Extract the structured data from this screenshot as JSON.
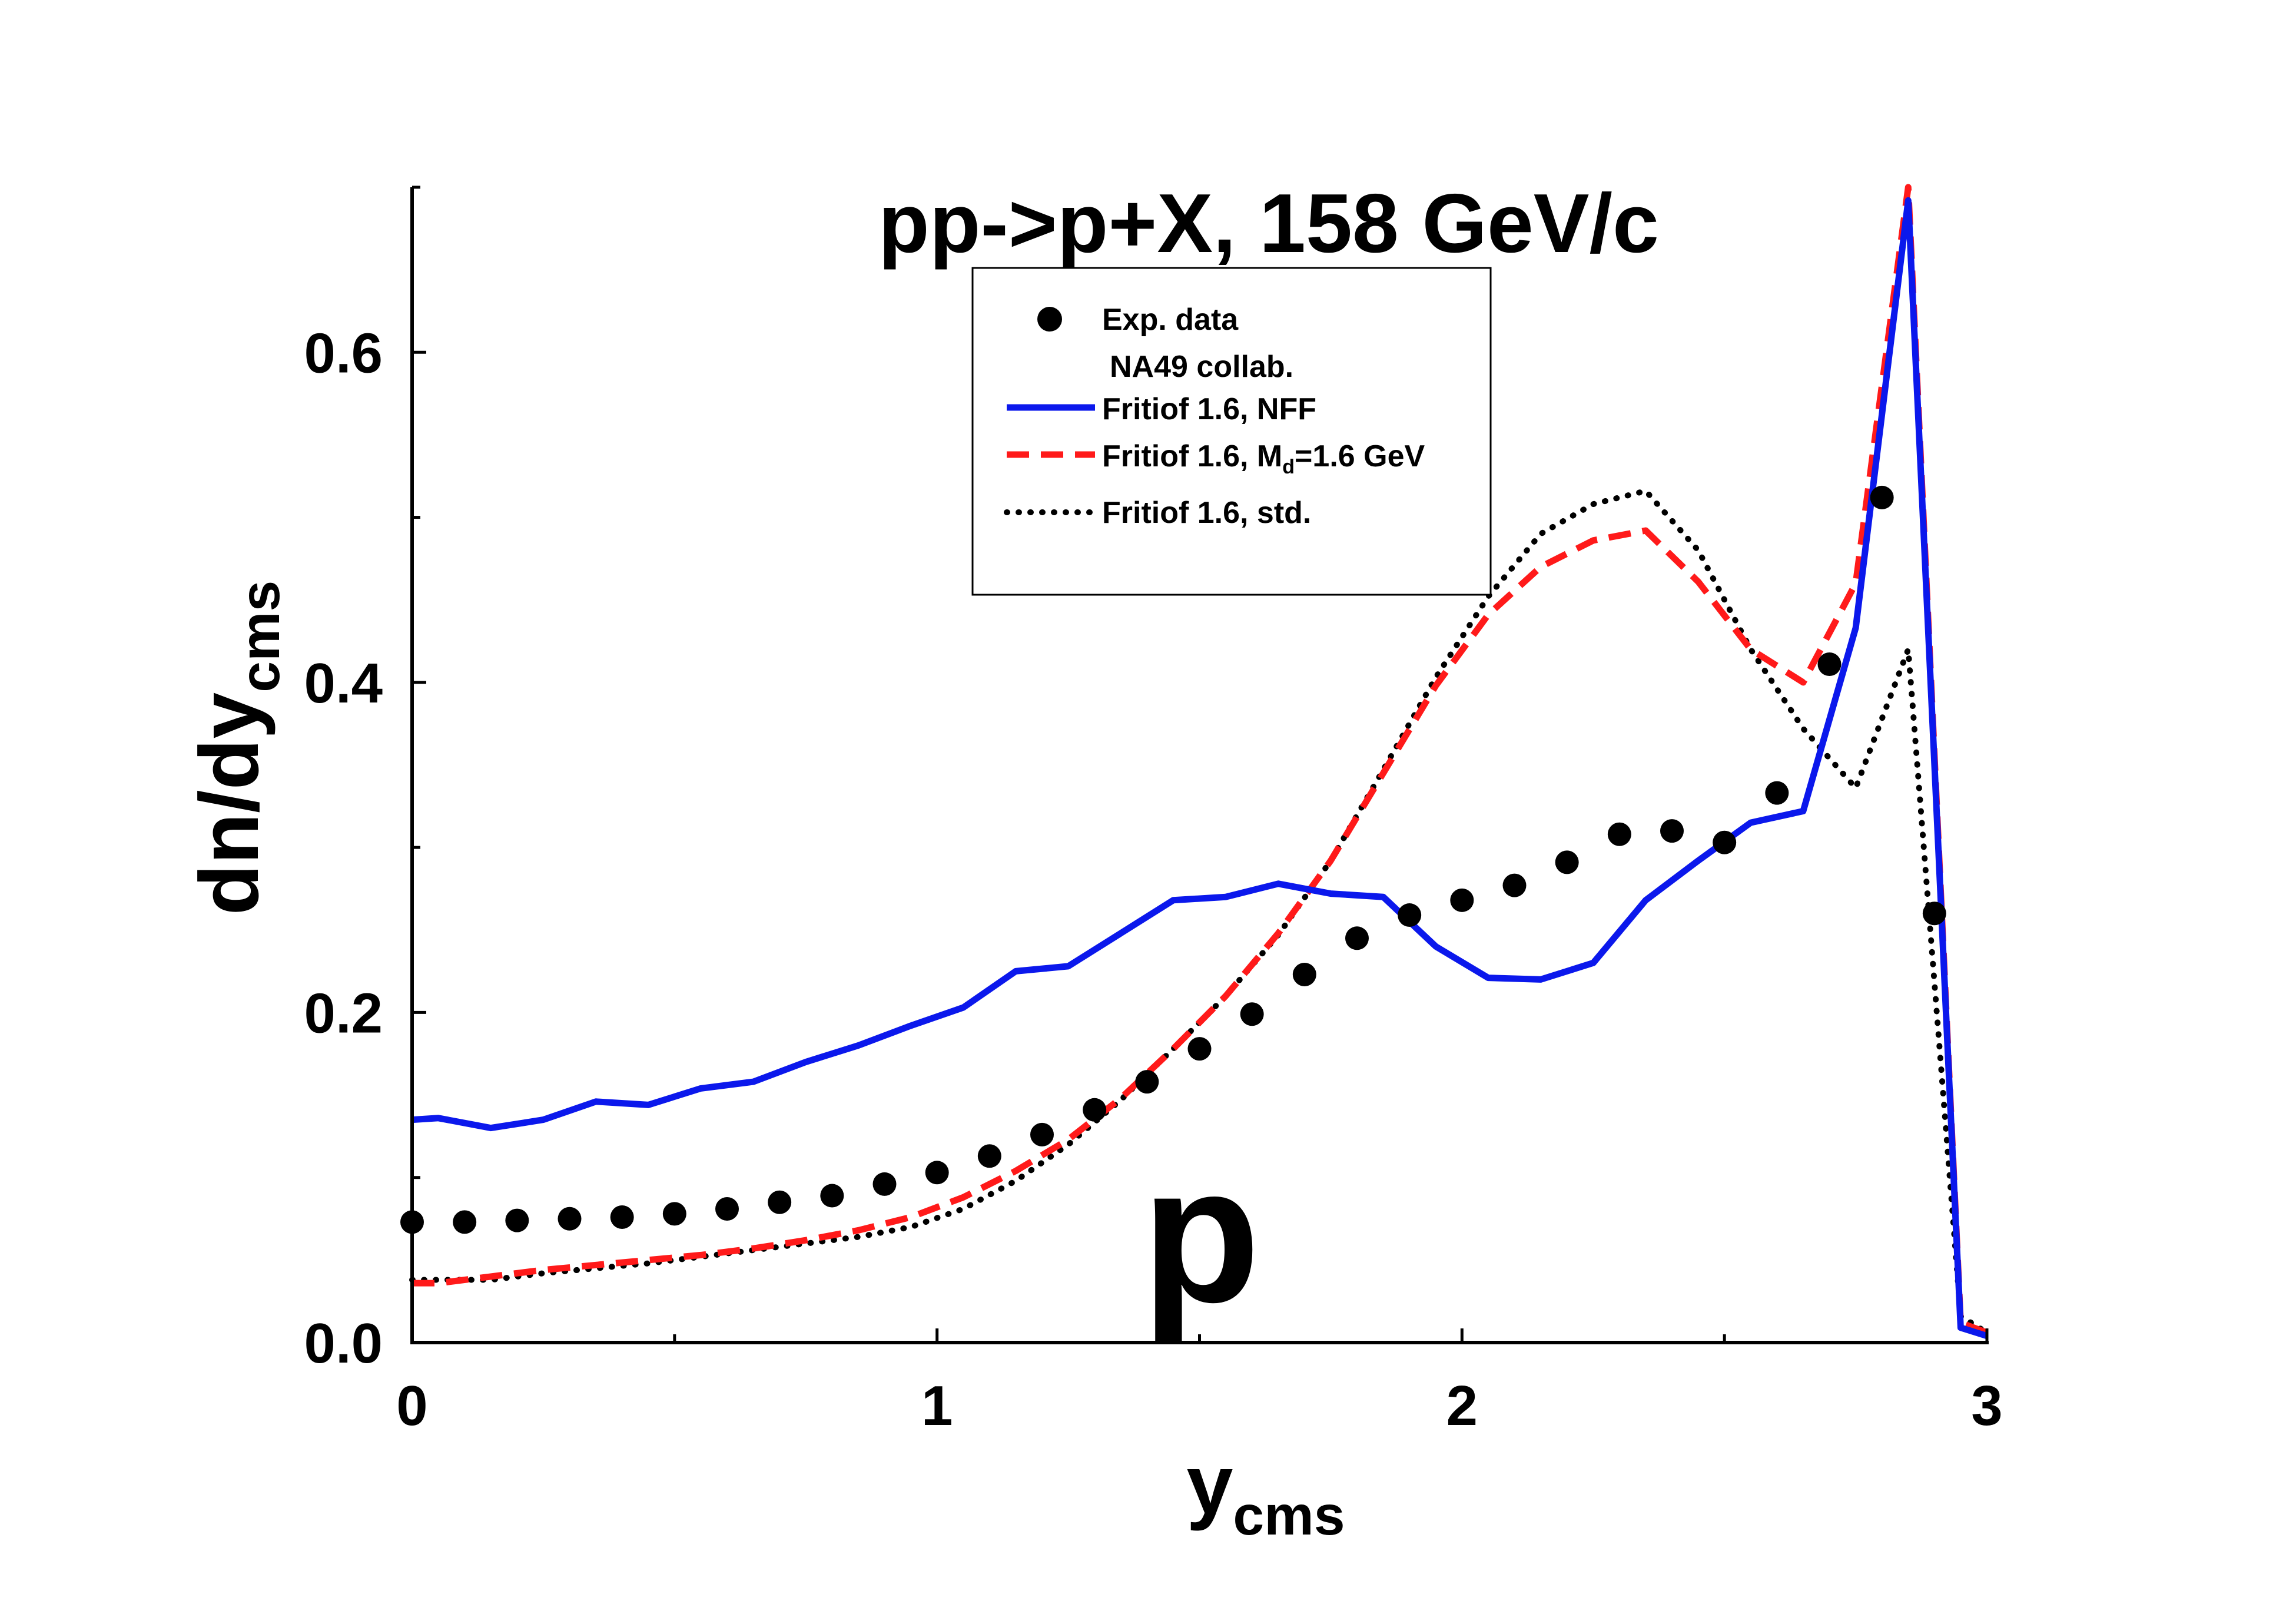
{
  "chart_data": {
    "type": "line",
    "title": "pp->p+X, 158 GeV/c",
    "panel_label": "p",
    "xlabel": "y",
    "xlabel_sub": "cms",
    "ylabel": "dn/dy",
    "ylabel_sub": "cms",
    "xlim": [
      0,
      3
    ],
    "ylim": [
      0,
      0.7
    ],
    "x_ticks": [
      0,
      1,
      2,
      3
    ],
    "x_tick_labels": [
      "0",
      "1",
      "2",
      "3"
    ],
    "y_ticks": [
      0.0,
      0.2,
      0.4,
      0.6
    ],
    "y_tick_labels": [
      "0.0",
      "0.2",
      "0.4",
      "0.6"
    ],
    "legend": {
      "position": "top-center",
      "note": "NA49 collab.",
      "entries": [
        {
          "label": "Exp. data",
          "style": "marker"
        },
        {
          "label": "Fritiof 1.6, NFF",
          "style": "solid"
        },
        {
          "label_main": "Fritiof 1.6, M",
          "label_sub": "d",
          "label_rest": "=1.6 GeV",
          "style": "dashed"
        },
        {
          "label": "Fritiof 1.6, std.",
          "style": "dotted"
        }
      ]
    },
    "series": [
      {
        "name": "Exp. data",
        "source": "NA49 collab.",
        "style": "marker",
        "color": "#000000",
        "x": [
          0.0,
          0.1,
          0.2,
          0.3,
          0.4,
          0.5,
          0.6,
          0.7,
          0.8,
          0.9,
          1.0,
          1.1,
          1.2,
          1.3,
          1.4,
          1.5,
          1.6,
          1.7,
          1.8,
          1.9,
          2.0,
          2.1,
          2.2,
          2.3,
          2.4,
          2.5,
          2.6,
          2.7,
          2.8,
          2.9
        ],
        "y": [
          0.073,
          0.073,
          0.074,
          0.075,
          0.076,
          0.078,
          0.081,
          0.085,
          0.089,
          0.096,
          0.103,
          0.113,
          0.126,
          0.141,
          0.158,
          0.178,
          0.199,
          0.223,
          0.245,
          0.259,
          0.268,
          0.277,
          0.291,
          0.308,
          0.31,
          0.303,
          0.333,
          0.411,
          0.512,
          0.26
        ]
      },
      {
        "name": "Fritiof 1.6, NFF",
        "style": "solid",
        "color": "#0b18ec",
        "x": [
          0.0,
          0.05,
          0.15,
          0.25,
          0.35,
          0.45,
          0.55,
          0.65,
          0.75,
          0.85,
          0.95,
          1.05,
          1.15,
          1.25,
          1.35,
          1.45,
          1.55,
          1.65,
          1.75,
          1.85,
          1.95,
          2.05,
          2.15,
          2.25,
          2.35,
          2.45,
          2.55,
          2.65,
          2.75,
          2.85,
          2.95,
          3.0
        ],
        "y": [
          0.135,
          0.136,
          0.13,
          0.135,
          0.146,
          0.144,
          0.154,
          0.158,
          0.17,
          0.18,
          0.192,
          0.203,
          0.225,
          0.228,
          0.248,
          0.268,
          0.27,
          0.278,
          0.272,
          0.27,
          0.24,
          0.221,
          0.22,
          0.23,
          0.268,
          0.292,
          0.315,
          0.322,
          0.433,
          0.692,
          0.009,
          0.004
        ]
      },
      {
        "name": "Fritiof 1.6, Md=1.6 GeV",
        "style": "dashed",
        "color": "#ff1a1a",
        "x": [
          0.0,
          0.05,
          0.15,
          0.25,
          0.35,
          0.45,
          0.55,
          0.65,
          0.75,
          0.85,
          0.95,
          1.05,
          1.15,
          1.25,
          1.35,
          1.45,
          1.55,
          1.65,
          1.75,
          1.85,
          1.95,
          2.05,
          2.15,
          2.25,
          2.35,
          2.45,
          2.55,
          2.65,
          2.75,
          2.85,
          2.95,
          3.0
        ],
        "y": [
          0.036,
          0.036,
          0.04,
          0.044,
          0.047,
          0.05,
          0.053,
          0.057,
          0.062,
          0.068,
          0.076,
          0.088,
          0.104,
          0.123,
          0.148,
          0.178,
          0.21,
          0.248,
          0.292,
          0.345,
          0.398,
          0.441,
          0.47,
          0.486,
          0.492,
          0.461,
          0.42,
          0.4,
          0.46,
          0.7,
          0.012,
          0.006
        ]
      },
      {
        "name": "Fritiof 1.6, std.",
        "style": "dotted",
        "color": "#000000",
        "x": [
          0.0,
          0.05,
          0.15,
          0.25,
          0.35,
          0.45,
          0.55,
          0.65,
          0.75,
          0.85,
          0.95,
          1.05,
          1.15,
          1.25,
          1.35,
          1.45,
          1.55,
          1.65,
          1.75,
          1.85,
          1.95,
          2.05,
          2.15,
          2.25,
          2.35,
          2.45,
          2.55,
          2.65,
          2.75,
          2.85,
          2.95,
          3.0
        ],
        "y": [
          0.038,
          0.038,
          0.038,
          0.042,
          0.045,
          0.048,
          0.052,
          0.056,
          0.06,
          0.064,
          0.07,
          0.081,
          0.098,
          0.12,
          0.147,
          0.178,
          0.21,
          0.247,
          0.292,
          0.347,
          0.403,
          0.452,
          0.49,
          0.508,
          0.516,
          0.48,
          0.42,
          0.372,
          0.336,
          0.42,
          0.016,
          0.006
        ]
      }
    ]
  }
}
